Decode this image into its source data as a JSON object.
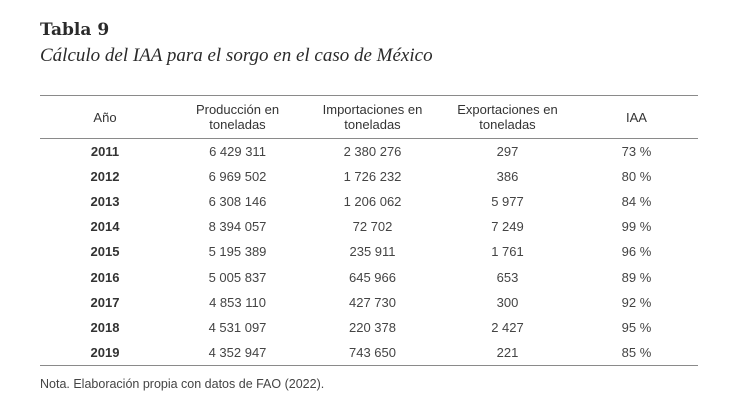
{
  "title": "Tabla 9",
  "subtitle": "Cálculo del IAA para el sorgo en el caso de México",
  "columns": [
    "Año",
    "Producción en toneladas",
    "Importaciones en toneladas",
    "Exportaciones en toneladas",
    "IAA"
  ],
  "rows": [
    [
      "2011",
      "6 429 311",
      "2 380 276",
      "297",
      "73 %"
    ],
    [
      "2012",
      "6 969 502",
      "1 726 232",
      "386",
      "80 %"
    ],
    [
      "2013",
      "6 308 146",
      "1 206 062",
      "5 977",
      "84 %"
    ],
    [
      "2014",
      "8 394 057",
      "72 702",
      "7 249",
      "99 %"
    ],
    [
      "2015",
      "5 195 389",
      "235 911",
      "1 761",
      "96 %"
    ],
    [
      "2016",
      "5 005 837",
      "645 966",
      "653",
      "89 %"
    ],
    [
      "2017",
      "4 853 110",
      "427 730",
      "300",
      "92 %"
    ],
    [
      "2018",
      "4 531 097",
      "220 378",
      "2 427",
      "95 %"
    ],
    [
      "2019",
      "4 352 947",
      "743 650",
      "221",
      "85 %"
    ]
  ],
  "note": "Nota. Elaboración propia con datos de FAO (2022)."
}
